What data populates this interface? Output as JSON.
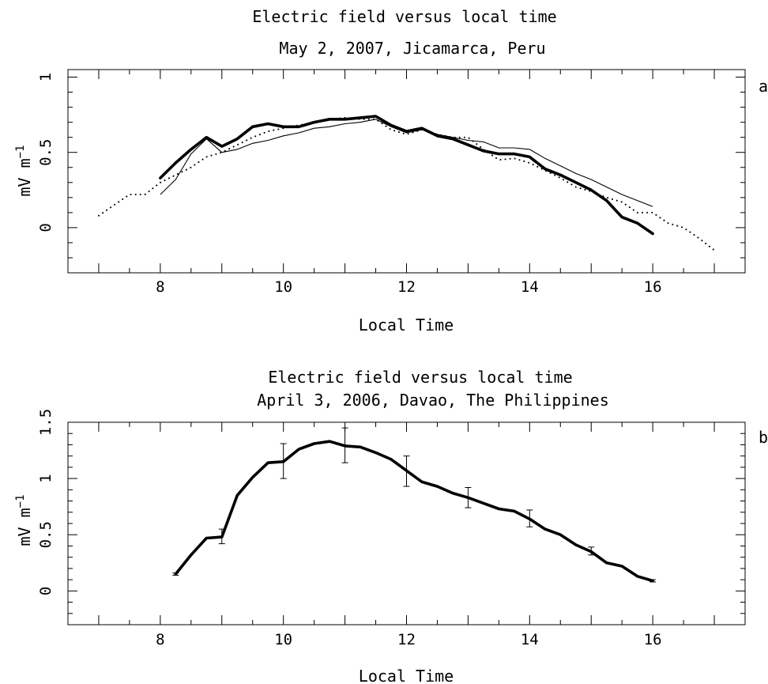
{
  "chart_data": [
    {
      "type": "line",
      "panel_label": "a",
      "title": "Electric field versus local time",
      "subtitle": "May 2, 2007, Jicamarca, Peru",
      "xlabel": "Local Time",
      "ylabel": "mV m",
      "ylabel_sup": "−1",
      "xlim": [
        6.5,
        17.5
      ],
      "ylim": [
        -0.3,
        1.05
      ],
      "xticks": [
        8,
        10,
        12,
        14,
        16
      ],
      "yticks": [
        0,
        0.5,
        1
      ],
      "ytick_labels": [
        "0",
        "0.5",
        "1"
      ],
      "grid": false,
      "series": [
        {
          "style": "thick",
          "x": [
            8,
            8.25,
            8.5,
            8.75,
            9,
            9.25,
            9.5,
            9.75,
            10,
            10.25,
            10.5,
            10.75,
            11,
            11.25,
            11.5,
            11.75,
            12,
            12.25,
            12.5,
            12.75,
            13,
            13.25,
            13.5,
            13.75,
            14,
            14.25,
            14.5,
            14.75,
            15,
            15.25,
            15.5,
            15.75,
            16
          ],
          "y": [
            0.33,
            0.43,
            0.52,
            0.6,
            0.54,
            0.59,
            0.67,
            0.69,
            0.67,
            0.67,
            0.7,
            0.72,
            0.72,
            0.73,
            0.74,
            0.68,
            0.64,
            0.66,
            0.61,
            0.59,
            0.55,
            0.51,
            0.49,
            0.49,
            0.47,
            0.39,
            0.35,
            0.3,
            0.25,
            0.18,
            0.07,
            0.03,
            -0.04
          ]
        },
        {
          "style": "thin",
          "x": [
            8,
            8.25,
            8.5,
            8.75,
            9,
            9.25,
            9.5,
            9.75,
            10,
            10.25,
            10.5,
            10.75,
            11,
            11.25,
            11.5,
            11.75,
            12,
            12.25,
            12.5,
            12.75,
            13,
            13.25,
            13.5,
            13.75,
            14,
            14.25,
            14.5,
            14.75,
            15,
            15.25,
            15.5,
            15.75,
            16
          ],
          "y": [
            0.22,
            0.32,
            0.49,
            0.59,
            0.5,
            0.52,
            0.56,
            0.58,
            0.61,
            0.63,
            0.66,
            0.67,
            0.69,
            0.7,
            0.72,
            0.67,
            0.63,
            0.65,
            0.62,
            0.6,
            0.58,
            0.57,
            0.53,
            0.53,
            0.52,
            0.46,
            0.41,
            0.36,
            0.32,
            0.27,
            0.22,
            0.18,
            0.14
          ]
        },
        {
          "style": "dotted",
          "x": [
            7,
            7.25,
            7.5,
            7.75,
            8,
            8.25,
            8.5,
            8.75,
            9,
            9.25,
            9.5,
            9.75,
            10,
            10.25,
            10.5,
            10.75,
            11,
            11.25,
            11.5,
            11.75,
            12,
            12.25,
            12.5,
            12.75,
            13,
            13.25,
            13.5,
            13.75,
            14,
            14.25,
            14.5,
            14.75,
            15,
            15.25,
            15.5,
            15.75,
            16,
            16.25,
            16.5,
            16.75,
            17
          ],
          "y": [
            0.08,
            0.15,
            0.22,
            0.22,
            0.3,
            0.35,
            0.4,
            0.47,
            0.5,
            0.55,
            0.6,
            0.64,
            0.66,
            0.68,
            0.7,
            0.72,
            0.73,
            0.72,
            0.72,
            0.65,
            0.62,
            0.65,
            0.62,
            0.6,
            0.6,
            0.52,
            0.45,
            0.46,
            0.43,
            0.38,
            0.33,
            0.27,
            0.24,
            0.2,
            0.17,
            0.1,
            0.1,
            0.03,
            0.0,
            -0.07,
            -0.15
          ]
        }
      ]
    },
    {
      "type": "line",
      "panel_label": "b",
      "title": "Electric field versus local time",
      "subtitle": "April 3, 2006, Davao, The Philippines",
      "xlabel": "Local Time",
      "ylabel": "mV m",
      "ylabel_sup": "−1",
      "xlim": [
        6.5,
        17.5
      ],
      "ylim": [
        -0.3,
        1.5
      ],
      "xticks": [
        8,
        10,
        12,
        14,
        16
      ],
      "yticks": [
        0,
        0.5,
        1,
        1.5
      ],
      "ytick_labels": [
        "0",
        "0.5",
        "1",
        "1.5"
      ],
      "grid": false,
      "series": [
        {
          "style": "thick",
          "x": [
            8.25,
            8.5,
            8.75,
            9,
            9.25,
            9.5,
            9.75,
            10,
            10.25,
            10.5,
            10.75,
            11,
            11.25,
            11.5,
            11.75,
            12,
            12.25,
            12.5,
            12.75,
            13,
            13.25,
            13.5,
            13.75,
            14,
            14.25,
            14.5,
            14.75,
            15,
            15.25,
            15.5,
            15.75,
            16
          ],
          "y": [
            0.15,
            0.32,
            0.47,
            0.48,
            0.85,
            1.01,
            1.14,
            1.15,
            1.26,
            1.31,
            1.33,
            1.29,
            1.28,
            1.23,
            1.17,
            1.07,
            0.97,
            0.93,
            0.87,
            0.83,
            0.78,
            0.73,
            0.71,
            0.64,
            0.55,
            0.5,
            0.41,
            0.35,
            0.25,
            0.22,
            0.13,
            0.09
          ]
        }
      ],
      "error_bars": [
        {
          "x": 8.25,
          "y": 0.15,
          "low": 0.14,
          "high": 0.16
        },
        {
          "x": 9,
          "y": 0.48,
          "low": 0.42,
          "high": 0.55
        },
        {
          "x": 10,
          "y": 1.15,
          "low": 1.0,
          "high": 1.31
        },
        {
          "x": 11,
          "y": 1.29,
          "low": 1.14,
          "high": 1.45
        },
        {
          "x": 12,
          "y": 1.07,
          "low": 0.93,
          "high": 1.2
        },
        {
          "x": 13,
          "y": 0.83,
          "low": 0.74,
          "high": 0.92
        },
        {
          "x": 14,
          "y": 0.64,
          "low": 0.57,
          "high": 0.72
        },
        {
          "x": 15,
          "y": 0.35,
          "low": 0.32,
          "high": 0.39
        },
        {
          "x": 16,
          "y": 0.09,
          "low": 0.08,
          "high": 0.1
        }
      ]
    }
  ]
}
